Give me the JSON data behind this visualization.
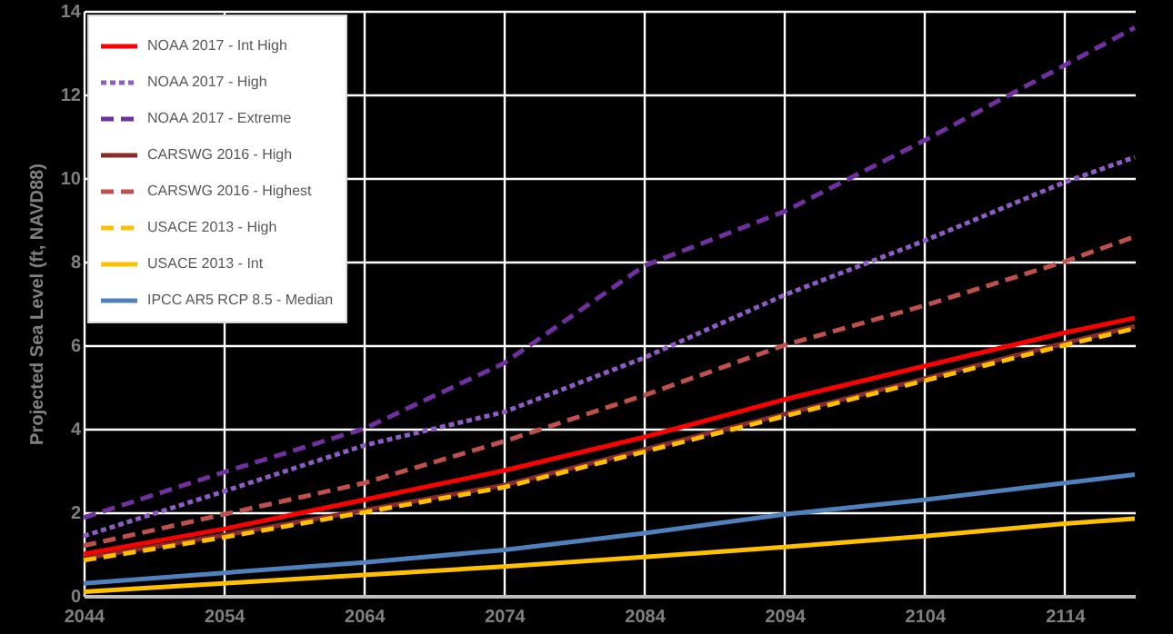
{
  "chart_data": {
    "type": "line",
    "ylabel": "Projected Sea Level (ft, NAVD88)",
    "x": [
      2044,
      2054,
      2064,
      2074,
      2084,
      2094,
      2104,
      2114,
      2119
    ],
    "xlim": [
      2044,
      2119
    ],
    "xticks": [
      2044,
      2054,
      2064,
      2074,
      2084,
      2094,
      2104,
      2114
    ],
    "ylim": [
      0,
      14
    ],
    "yticks": [
      0,
      2,
      4,
      6,
      8,
      10,
      12,
      14
    ],
    "grid": true,
    "legend": "top left",
    "marker": "none",
    "series": [
      {
        "name": "NOAA 2017 - Int High",
        "color": "#ff0000",
        "line_style": "solid",
        "values": [
          1.0,
          1.6,
          2.3,
          3.0,
          3.8,
          4.7,
          5.5,
          6.3,
          6.65
        ]
      },
      {
        "name": "NOAA 2017 - High",
        "color": "#8e5cc7",
        "line_style": "dotted",
        "values": [
          1.43,
          2.5,
          3.6,
          4.4,
          5.7,
          7.2,
          8.5,
          9.9,
          10.5
        ]
      },
      {
        "name": "NOAA 2017 - Extreme",
        "color": "#7030a0",
        "line_style": "dashed",
        "values": [
          1.87,
          2.96,
          4.0,
          5.57,
          7.9,
          9.2,
          10.9,
          12.7,
          13.6
        ]
      },
      {
        "name": "CARSWG 2016 - High",
        "color": "#8b2a2a",
        "line_style": "solid",
        "values": [
          0.9,
          1.45,
          2.05,
          2.65,
          3.5,
          4.35,
          5.2,
          6.05,
          6.45
        ]
      },
      {
        "name": "CARSWG 2016 - Highest",
        "color": "#c0504d",
        "line_style": "dashed",
        "values": [
          1.2,
          1.95,
          2.7,
          3.7,
          4.8,
          6.0,
          6.95,
          8.0,
          8.6
        ]
      },
      {
        "name": "USACE 2013 - High",
        "color": "#ffc000",
        "line_style": "dashed",
        "values": [
          0.85,
          1.4,
          2.0,
          2.6,
          3.45,
          4.3,
          5.15,
          6.0,
          6.4
        ]
      },
      {
        "name": "USACE 2013 - Int",
        "color": "#ffc000",
        "line_style": "solid",
        "values": [
          0.1,
          0.3,
          0.5,
          0.7,
          0.93,
          1.17,
          1.43,
          1.73,
          1.85
        ]
      },
      {
        "name": "IPCC AR5 RCP 8.5 - Median",
        "color": "#4f81bd",
        "line_style": "solid",
        "values": [
          0.3,
          0.55,
          0.8,
          1.1,
          1.5,
          1.95,
          2.3,
          2.7,
          2.9
        ]
      }
    ]
  }
}
